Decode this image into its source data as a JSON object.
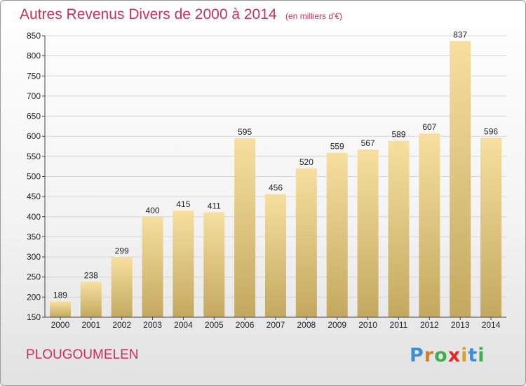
{
  "title": "Autres Revenus Divers de 2000 à 2014",
  "unit_note": "(en milliers d'€)",
  "place": "PLOUGOUMELEN",
  "logo_text": "Proxiti",
  "colors": {
    "title": "#c8325a",
    "bar_light": "#f6dfa0",
    "bar_dark": "#c3a95f",
    "grid": "#d6d6d6"
  },
  "chart_data": {
    "type": "bar",
    "title": "Autres Revenus Divers de 2000 à 2014",
    "subtitle": "(en milliers d'€)",
    "xlabel": "",
    "ylabel": "",
    "categories": [
      "2000",
      "2001",
      "2002",
      "2003",
      "2004",
      "2005",
      "2006",
      "2007",
      "2008",
      "2009",
      "2010",
      "2011",
      "2012",
      "2013",
      "2014"
    ],
    "values": [
      189,
      238,
      299,
      400,
      415,
      411,
      595,
      456,
      520,
      559,
      567,
      589,
      607,
      837,
      596
    ],
    "ylim": [
      150,
      850
    ],
    "yticks": [
      150,
      200,
      250,
      300,
      350,
      400,
      450,
      500,
      550,
      600,
      650,
      700,
      750,
      800,
      850
    ],
    "grid": true,
    "legend": "none"
  }
}
